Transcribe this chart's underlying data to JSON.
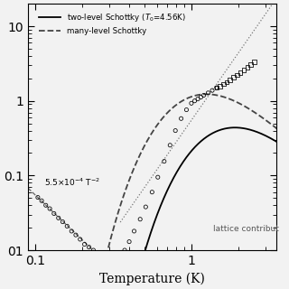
{
  "title": "",
  "xlabel": "Temperature (K)",
  "ylabel": "",
  "xlim": [
    0.09,
    3.5
  ],
  "ylim": [
    0.01,
    20
  ],
  "T0_two": 4.56,
  "background_color": "#f0f0f0",
  "legend_loc": "upper left"
}
